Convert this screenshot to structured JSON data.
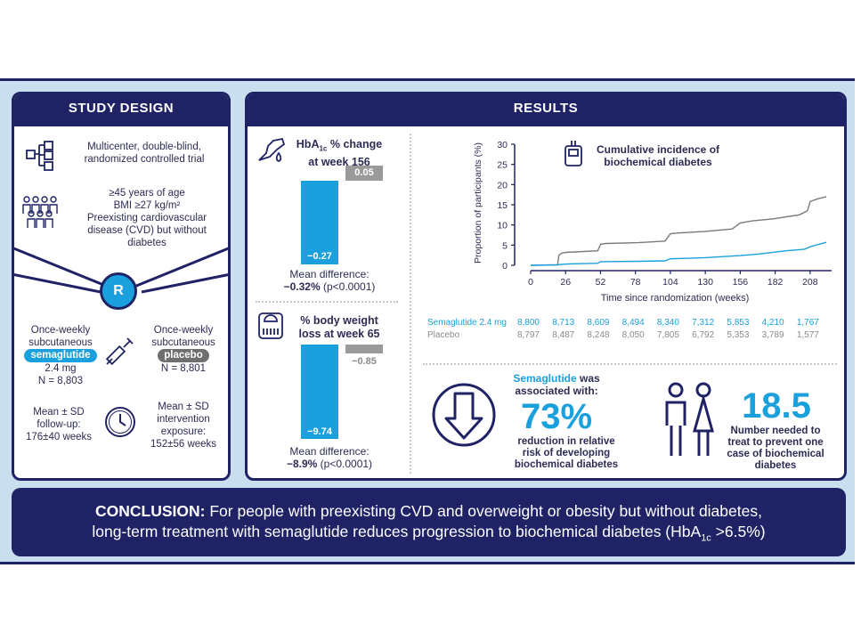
{
  "study_design": {
    "title": "STUDY DESIGN",
    "trial_type_line1": "Multicenter, double-blind,",
    "trial_type_line2": "randomized controlled trial",
    "criteria": [
      "≥45 years of age",
      "BMI ≥27 kg/m²",
      "Preexisting cardiovascular",
      "disease (CVD) but without",
      "diabetes"
    ],
    "randomization_label": "R",
    "arm_left": {
      "line1": "Once-weekly",
      "line2": "subcutaneous",
      "pill": "semaglutide",
      "dose": "2.4 mg",
      "n": "N = 8,803"
    },
    "arm_right": {
      "line1": "Once-weekly",
      "line2": "subcutaneous",
      "pill": "placebo",
      "n": "N = 8,801"
    },
    "followup": {
      "line1": "Mean ± SD",
      "line2": "follow-up:",
      "line3": "176±40 weeks"
    },
    "exposure": {
      "line1": "Mean ± SD",
      "line2": "intervention",
      "line3": "exposure:",
      "line4": "152±56 weeks"
    }
  },
  "results": {
    "title": "RESULTS",
    "hba1c": {
      "title_line1": "HbA",
      "title_sub": "1c",
      "title_line1_rest": " % change",
      "title_line2": "at week 156",
      "semaglutide_value": -0.27,
      "semaglutide_label": "−0.27",
      "placebo_value": 0.05,
      "placebo_label": "0.05",
      "mean_diff_label": "Mean difference:",
      "mean_diff_value": "−0.32%",
      "mean_diff_p": "(p<0.0001)"
    },
    "weight": {
      "title_line1": "% body weight",
      "title_line2": "loss at week 65",
      "semaglutide_value": -9.74,
      "semaglutide_label": "−9.74",
      "placebo_value": -0.85,
      "placebo_label": "−0.85",
      "mean_diff_label": "Mean difference:",
      "mean_diff_value": "−8.9%",
      "mean_diff_p": "(p<0.0001)"
    },
    "stat_73": {
      "heading_bold": "Semaglutide",
      "heading_rest": " was",
      "heading_line2": "associated with:",
      "big": "73%",
      "desc_line1": "reduction in relative",
      "desc_line2": "risk of developing",
      "desc_line3": "biochemical diabetes"
    },
    "stat_nnt": {
      "big": "18.5",
      "desc_line1": "Number needed to",
      "desc_line2": "treat to prevent one",
      "desc_line3": "case of biochemical",
      "desc_line4": "diabetes"
    },
    "risk_table": {
      "semaglutide_label": "Semaglutide 2.4 mg",
      "placebo_label": "Placebo",
      "semaglutide": [
        "8,800",
        "8,713",
        "8,609",
        "8,494",
        "8,340",
        "7,312",
        "5,853",
        "4,210",
        "1,767"
      ],
      "placebo": [
        "8,797",
        "8,487",
        "8,248",
        "8,050",
        "7,805",
        "6,792",
        "5,353",
        "3,789",
        "1,577"
      ]
    }
  },
  "conclusion": {
    "label": "CONCLUSION:",
    "text1": " For people with preexisting CVD and overweight or obesity but without diabetes,",
    "text2": "long-term treatment with semaglutide reduces progression to biochemical diabetes (HbA",
    "sub": "1c",
    "text3": " >6.5%)"
  },
  "colors": {
    "navy": "#1f2366",
    "blue": "#1aa0dc",
    "grey": "#9a9a9a",
    "light_bg": "#c9dff0"
  },
  "chart_data": {
    "type": "line",
    "title": "Cumulative incidence of biochemical diabetes",
    "xlabel": "Time since randomization (weeks)",
    "ylabel": "Proportion of participants (%)",
    "xlim": [
      0,
      224
    ],
    "ylim": [
      0,
      30
    ],
    "xticks": [
      0,
      26,
      52,
      78,
      104,
      130,
      156,
      182,
      208
    ],
    "yticks": [
      0,
      5,
      10,
      15,
      20,
      25,
      30
    ],
    "series": [
      {
        "name": "Placebo",
        "color": "#7a7a7a",
        "x": [
          0,
          20,
          21,
          23,
          26,
          50,
          52,
          56,
          80,
          100,
          104,
          110,
          130,
          150,
          156,
          165,
          180,
          200,
          206,
          208,
          214,
          220
        ],
        "y": [
          0,
          0.1,
          2.5,
          3.0,
          3.2,
          3.6,
          5.2,
          5.4,
          5.6,
          6.0,
          7.8,
          8.0,
          8.4,
          9.0,
          10.5,
          11.0,
          11.5,
          12.5,
          13.5,
          15.8,
          16.5,
          17.0
        ]
      },
      {
        "name": "Semaglutide 2.4 mg",
        "color": "#1aa0dc",
        "x": [
          0,
          20,
          26,
          50,
          52,
          80,
          100,
          104,
          130,
          156,
          170,
          190,
          204,
          208,
          220
        ],
        "y": [
          0,
          0.1,
          0.3,
          0.5,
          0.9,
          1.0,
          1.1,
          1.6,
          1.9,
          2.4,
          2.8,
          3.6,
          4.0,
          4.6,
          5.7
        ]
      }
    ]
  }
}
